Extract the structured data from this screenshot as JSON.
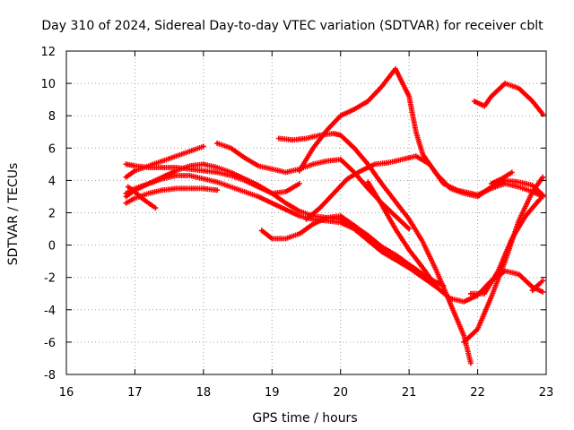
{
  "chart_data": {
    "type": "scatter",
    "title": "Day 310 of 2024, Sidereal Day-to-day VTEC variation (SDTVAR) for receiver cblt",
    "xlabel": "GPS time / hours",
    "ylabel": "SDTVAR / TECUs",
    "xlim": [
      16,
      23
    ],
    "ylim": [
      -8,
      12
    ],
    "xticks": [
      "16",
      "17",
      "18",
      "19",
      "20",
      "21",
      "22",
      "23"
    ],
    "yticks": [
      "-8",
      "-6",
      "-4",
      "-2",
      "0",
      "2",
      "4",
      "6",
      "8",
      "10",
      "12"
    ],
    "grid": true,
    "marker": "plus",
    "color": "#ff0000",
    "series": [
      {
        "name": "arc1",
        "x": [
          16.87,
          17.0,
          17.2,
          17.4,
          17.6,
          17.8,
          18.0,
          18.2,
          18.4,
          18.6,
          18.8,
          19.0,
          19.2,
          19.4,
          19.6,
          19.8,
          20.0,
          20.2,
          20.4,
          20.6,
          20.8,
          21.0,
          21.2,
          21.35,
          21.5
        ],
        "y": [
          3.2,
          3.5,
          3.8,
          4.2,
          4.6,
          4.9,
          5.0,
          4.8,
          4.5,
          4.1,
          3.7,
          3.2,
          2.6,
          2.1,
          1.8,
          1.7,
          1.6,
          1.2,
          0.6,
          -0.1,
          -0.6,
          -1.2,
          -1.8,
          -2.2,
          -2.5
        ]
      },
      {
        "name": "arc2",
        "x": [
          16.87,
          17.0,
          17.2,
          17.4,
          17.6,
          17.8,
          18.0,
          18.2,
          18.4,
          18.6,
          18.8,
          19.0,
          19.2,
          19.4,
          19.6,
          19.8,
          20.0,
          20.2,
          20.4,
          20.6,
          20.8,
          21.0,
          21.2,
          21.35
        ],
        "y": [
          3.0,
          3.4,
          3.8,
          4.1,
          4.3,
          4.3,
          4.1,
          3.9,
          3.6,
          3.3,
          3.0,
          2.6,
          2.2,
          1.8,
          1.6,
          1.5,
          1.4,
          1.0,
          0.3,
          -0.4,
          -0.9,
          -1.4,
          -1.9,
          -2.3
        ]
      },
      {
        "name": "arc3",
        "x": [
          16.9,
          17.0,
          17.1,
          17.2,
          17.3
        ],
        "y": [
          3.6,
          3.3,
          2.9,
          2.6,
          2.3
        ]
      },
      {
        "name": "arc4",
        "x": [
          16.87,
          17.0,
          17.2,
          17.4,
          17.6,
          17.8,
          18.0
        ],
        "y": [
          4.2,
          4.6,
          4.9,
          5.2,
          5.5,
          5.8,
          6.1
        ]
      },
      {
        "name": "arc5",
        "x": [
          16.87,
          17.0,
          17.2,
          17.4,
          17.6,
          17.8,
          18.0,
          18.2,
          18.4,
          18.6,
          18.8,
          19.0,
          19.2,
          19.4
        ],
        "y": [
          5.0,
          4.9,
          4.8,
          4.8,
          4.8,
          4.7,
          4.6,
          4.5,
          4.3,
          4.0,
          3.6,
          3.2,
          3.3,
          3.8
        ]
      },
      {
        "name": "arc6",
        "x": [
          16.87,
          17.0,
          17.2,
          17.4,
          17.6,
          17.8,
          18.0,
          18.2
        ],
        "y": [
          2.6,
          2.9,
          3.2,
          3.4,
          3.5,
          3.5,
          3.5,
          3.4
        ]
      },
      {
        "name": "arc7",
        "x": [
          18.2,
          18.4,
          18.6,
          18.8,
          19.0,
          19.2,
          19.4,
          19.6,
          19.8,
          20.0,
          20.2,
          20.4,
          20.6,
          20.8,
          21.0
        ],
        "y": [
          6.3,
          6.0,
          5.4,
          4.9,
          4.7,
          4.5,
          4.7,
          5.0,
          5.2,
          5.3,
          4.5,
          3.5,
          2.6,
          1.8,
          1.0
        ]
      },
      {
        "name": "arc8",
        "x": [
          18.85,
          19.0,
          19.2,
          19.4,
          19.6,
          19.8,
          20.0,
          20.2,
          20.4,
          20.6,
          20.8,
          21.0,
          21.2,
          21.4
        ],
        "y": [
          0.9,
          0.4,
          0.4,
          0.7,
          1.3,
          1.7,
          1.8,
          1.2,
          0.3,
          -0.4,
          -0.9,
          -1.4,
          -2.0,
          -2.6
        ]
      },
      {
        "name": "arc9",
        "x": [
          19.1,
          19.3,
          19.5,
          19.7,
          19.9,
          20.0,
          20.2,
          20.4,
          20.6,
          20.8,
          21.0,
          21.2,
          21.4,
          21.6,
          21.8,
          21.9
        ],
        "y": [
          6.6,
          6.5,
          6.6,
          6.8,
          6.9,
          6.8,
          6.0,
          5.0,
          3.8,
          2.7,
          1.6,
          0.2,
          -1.6,
          -3.6,
          -5.6,
          -7.3
        ]
      },
      {
        "name": "arc10",
        "x": [
          19.4,
          19.6,
          19.8,
          20.0,
          20.2,
          20.4,
          20.6,
          20.8,
          21.0,
          21.1,
          21.2,
          21.4,
          21.6,
          21.8,
          22.0,
          22.2,
          22.4,
          22.6,
          22.8,
          22.95
        ],
        "y": [
          4.6,
          6.0,
          7.1,
          8.0,
          8.4,
          8.9,
          9.8,
          10.9,
          9.2,
          7.0,
          5.6,
          4.4,
          3.5,
          3.2,
          3.0,
          3.6,
          4.0,
          3.9,
          3.7,
          3.1
        ]
      },
      {
        "name": "arc11",
        "x": [
          19.5,
          19.7,
          19.9,
          20.1,
          20.3,
          20.5,
          20.7,
          20.9,
          21.1,
          21.3,
          21.5,
          21.7,
          21.9,
          22.0,
          22.2,
          22.4,
          22.6,
          22.8,
          22.95
        ],
        "y": [
          1.6,
          2.3,
          3.2,
          4.1,
          4.6,
          5.0,
          5.1,
          5.3,
          5.5,
          5.0,
          3.8,
          3.4,
          3.2,
          3.1,
          3.5,
          3.8,
          3.6,
          3.3,
          3.0
        ]
      },
      {
        "name": "arc12",
        "x": [
          20.4,
          20.6,
          20.8,
          21.0,
          21.2,
          21.4,
          21.6,
          21.8,
          22.0,
          22.2,
          22.4,
          22.6,
          22.8,
          22.95
        ],
        "y": [
          3.9,
          2.5,
          1.0,
          -0.3,
          -1.4,
          -2.6,
          -3.3,
          -3.5,
          -3.1,
          -2.2,
          -1.6,
          -1.8,
          -2.6,
          -2.9
        ]
      },
      {
        "name": "arc13",
        "x": [
          21.8,
          22.0,
          22.2,
          22.4,
          22.6,
          22.8,
          22.95
        ],
        "y": [
          -6.0,
          -5.2,
          -3.2,
          -1.0,
          1.5,
          3.3,
          4.2
        ]
      },
      {
        "name": "arc14",
        "x": [
          21.9,
          22.1,
          22.3,
          22.5,
          22.7,
          22.9,
          22.95
        ],
        "y": [
          -3.0,
          -3.0,
          -1.6,
          0.4,
          1.8,
          2.8,
          3.0
        ]
      },
      {
        "name": "arc15",
        "x": [
          21.95,
          22.1,
          22.2,
          22.4,
          22.6,
          22.8,
          22.95
        ],
        "y": [
          8.9,
          8.6,
          9.2,
          10.0,
          9.7,
          8.9,
          8.1
        ]
      },
      {
        "name": "arc16",
        "x": [
          22.2,
          22.35,
          22.5
        ],
        "y": [
          3.8,
          4.1,
          4.5
        ]
      },
      {
        "name": "arc17",
        "x": [
          22.8,
          22.9,
          22.95
        ],
        "y": [
          -2.8,
          -2.4,
          -2.2
        ]
      }
    ]
  }
}
